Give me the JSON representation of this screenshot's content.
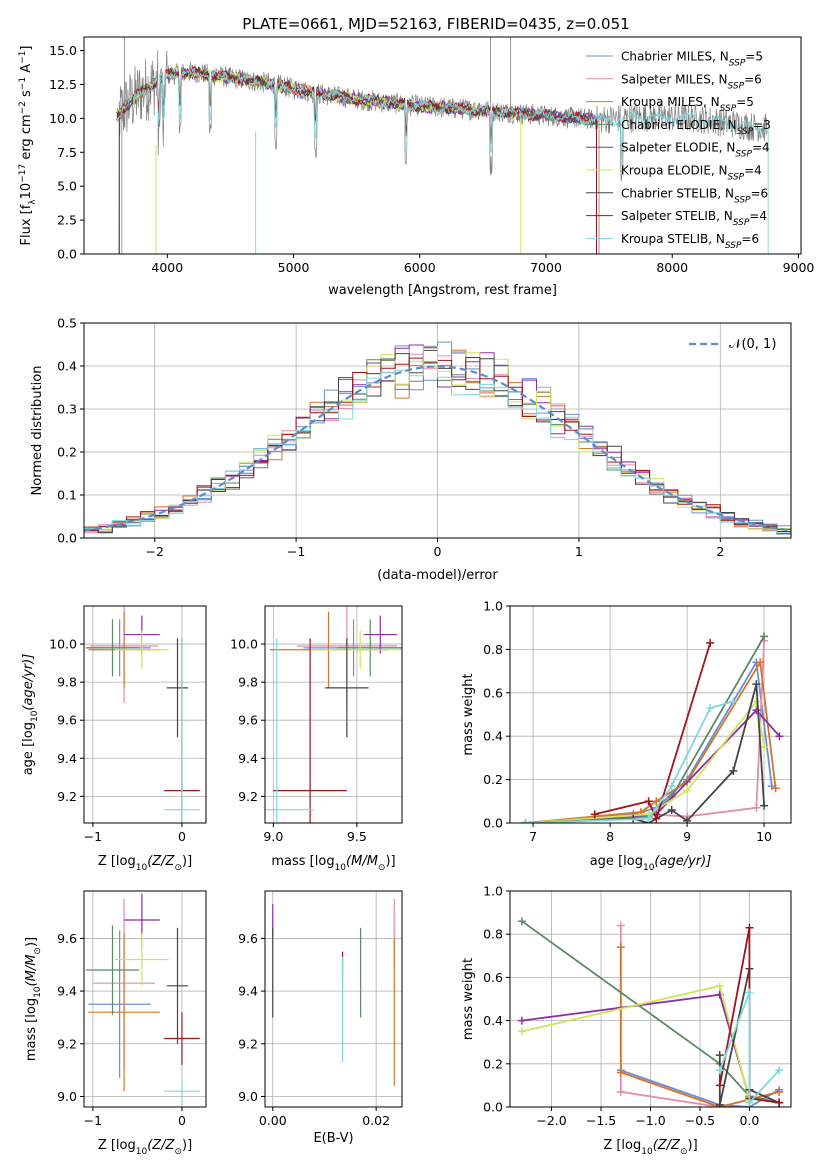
{
  "title": "PLATE=0661, MJD=52163, FIBERID=0435, z=0.051",
  "colors": {
    "cm": "#6a8fd8",
    "sm": "#e68aae",
    "km": "#d5742a",
    "ce": "#5b8a63",
    "se": "#8f2ca6",
    "ke": "#cfe45a",
    "cs": "#444444",
    "ss": "#a0141a",
    "ks": "#7fd8dc",
    "normal": "#5c8cd0",
    "data": "#808080"
  },
  "chart_data": [
    {
      "id": "spectrum",
      "type": "line",
      "xlabel": "wavelength [Angstrom, rest frame]",
      "ylabel_main": "Flux [f",
      "ylabel_sub": "λ",
      "ylabel_rest": "10",
      "ylabel_exp": "−17",
      "ylabel_unit": " erg cm",
      "ylabel_unit_exp": "−2",
      "ylabel_s": " s",
      "ylabel_s_exp": "−1",
      "ylabel_a": " A",
      "ylabel_a_exp": "−1",
      "ylabel_end": "]",
      "xlim": [
        3340,
        9020
      ],
      "ylim": [
        0,
        16
      ],
      "xticks": [
        4000,
        5000,
        6000,
        7000,
        8000,
        9000
      ],
      "yticks": [
        0.0,
        2.5,
        5.0,
        7.5,
        10.0,
        12.5,
        15.0
      ],
      "legend_position": "upper right",
      "legend": [
        {
          "key": "cm",
          "name": "Chabrier MILES",
          "n": "5"
        },
        {
          "key": "sm",
          "name": "Salpeter MILES",
          "n": "6"
        },
        {
          "key": "km",
          "name": "Kroupa MILES",
          "n": "5"
        },
        {
          "key": "ce",
          "name": "Chabrier ELODIE",
          "n": "3"
        },
        {
          "key": "se",
          "name": "Salpeter ELODIE",
          "n": "4"
        },
        {
          "key": "ke",
          "name": "Kroupa ELODIE",
          "n": "4"
        },
        {
          "key": "cs",
          "name": "Chabrier STELIB",
          "n": "6"
        },
        {
          "key": "ss",
          "name": "Salpeter STELIB",
          "n": "4"
        },
        {
          "key": "ks",
          "name": "Kroupa STELIB",
          "n": "6"
        }
      ],
      "legend_label_prefix": "N",
      "legend_label_sub": "SSP",
      "continuum": [
        [
          3600,
          10.2
        ],
        [
          3800,
          12.0
        ],
        [
          4000,
          13.2
        ],
        [
          4200,
          13.4
        ],
        [
          4500,
          13.0
        ],
        [
          4800,
          12.6
        ],
        [
          5200,
          11.8
        ],
        [
          5600,
          11.3
        ],
        [
          6000,
          10.9
        ],
        [
          6500,
          10.6
        ],
        [
          7000,
          10.2
        ],
        [
          7400,
          9.9
        ],
        [
          7800,
          10.1
        ],
        [
          8200,
          10.0
        ],
        [
          8700,
          9.3
        ]
      ],
      "data_extent": [
        3600,
        8750
      ],
      "ssp_extents": {
        "cm": [
          3600,
          7400
        ],
        "sm": [
          3600,
          7400
        ],
        "km": [
          3600,
          7400
        ],
        "ce": [
          3600,
          7400
        ],
        "se": [
          3600,
          7400
        ],
        "ke": [
          3600,
          6800
        ],
        "cs": [
          3600,
          7400
        ],
        "ss": [
          3600,
          7400
        ],
        "ks": [
          3600,
          8760
        ]
      }
    },
    {
      "id": "residuals",
      "type": "histogram",
      "xlabel": "(data-model)/error",
      "ylabel": "Normed distribution",
      "xlim": [
        -2.5,
        2.5
      ],
      "ylim": [
        0,
        0.5
      ],
      "xticks": [
        -2,
        -1,
        0,
        1,
        2
      ],
      "yticks": [
        0.0,
        0.1,
        0.2,
        0.3,
        0.4,
        0.5
      ],
      "grid": true,
      "legend_label": "𝒩(0, 1)",
      "legend_position": "upper right",
      "bin_width": 0.1
    },
    {
      "id": "age_vs_Z",
      "type": "errorbar",
      "xlabel": "Z [log10(Z/Z⊙)]",
      "xlabel_pre": "Z [log",
      "xlabel_sub": "10",
      "xlabel_mid": "(Z/Z",
      "xlabel_sun": "⊙",
      "xlabel_end": ")]",
      "ylabel_pre": "age  [log",
      "ylabel_sub": "10",
      "ylabel_end": "(age/yr)]",
      "xlim": [
        -1.1,
        0.27
      ],
      "ylim": [
        9.06,
        10.2
      ],
      "xticks": [
        -1,
        0
      ],
      "yticks": [
        9.2,
        9.4,
        9.6,
        9.8,
        10.0
      ],
      "grid": true,
      "points": [
        {
          "key": "cm",
          "x": -0.7,
          "y": 9.98,
          "xerr": 0.35,
          "yerr": 0.15
        },
        {
          "key": "sm",
          "x": -0.65,
          "y": 9.99,
          "xerr": 0.38,
          "yerr": 0.3
        },
        {
          "key": "km",
          "x": -0.65,
          "y": 9.97,
          "xerr": 0.4,
          "yerr": 0.2
        },
        {
          "key": "ce",
          "x": -0.78,
          "y": 9.98,
          "xerr": 0.3,
          "yerr": 0.15
        },
        {
          "key": "se",
          "x": -0.45,
          "y": 10.05,
          "xerr": 0.2,
          "yerr": 0.1
        },
        {
          "key": "ke",
          "x": -0.45,
          "y": 9.97,
          "xerr": 0.3,
          "yerr": 0.1
        },
        {
          "key": "cs",
          "x": -0.05,
          "y": 9.77,
          "xerr": 0.12,
          "yerr": 0.26
        },
        {
          "key": "ss",
          "x": 0.0,
          "y": 9.23,
          "xerr": 0.2,
          "yerr": 0.8
        },
        {
          "key": "ks",
          "x": 0.0,
          "y": 9.13,
          "xerr": 0.2,
          "yerr": 0.9
        }
      ]
    },
    {
      "id": "age_vs_mass",
      "type": "errorbar",
      "xlabel_pre": "mass [log",
      "xlabel_sub": "10",
      "xlabel_mid": "(M/M",
      "xlabel_sun": "⊙",
      "xlabel_end": ")]",
      "xlim": [
        8.95,
        9.77
      ],
      "ylim": [
        9.06,
        10.2
      ],
      "xticks": [
        9.0,
        9.5
      ],
      "yticks": [
        9.2,
        9.4,
        9.6,
        9.8,
        10.0
      ],
      "grid": true,
      "points": [
        {
          "key": "cm",
          "x": 9.48,
          "y": 9.98,
          "xerr": 0.3,
          "yerr": 0.15
        },
        {
          "key": "sm",
          "x": 9.44,
          "y": 9.99,
          "xerr": 0.3,
          "yerr": 0.3
        },
        {
          "key": "km",
          "x": 9.33,
          "y": 9.97,
          "xerr": 0.35,
          "yerr": 0.2
        },
        {
          "key": "ce",
          "x": 9.58,
          "y": 9.98,
          "xerr": 0.2,
          "yerr": 0.15
        },
        {
          "key": "se",
          "x": 9.64,
          "y": 10.05,
          "xerr": 0.1,
          "yerr": 0.1
        },
        {
          "key": "ke",
          "x": 9.52,
          "y": 9.97,
          "xerr": 0.3,
          "yerr": 0.1
        },
        {
          "key": "cs",
          "x": 9.44,
          "y": 9.77,
          "xerr": 0.13,
          "yerr": 0.26
        },
        {
          "key": "ss",
          "x": 9.22,
          "y": 9.23,
          "xerr": 0.22,
          "yerr": 0.8
        },
        {
          "key": "ks",
          "x": 9.02,
          "y": 9.13,
          "xerr": 0.22,
          "yerr": 0.9
        }
      ]
    },
    {
      "id": "weight_vs_age",
      "type": "line",
      "xlabel_pre": "age  [log",
      "xlabel_sub": "10",
      "xlabel_end": "(age/yr)]",
      "ylabel": "mass weight",
      "xlim": [
        6.7,
        10.35
      ],
      "ylim": [
        0,
        1
      ],
      "xticks": [
        7,
        8,
        9,
        10
      ],
      "yticks": [
        0.0,
        0.2,
        0.4,
        0.6,
        0.8,
        1.0
      ],
      "grid": true,
      "series": [
        {
          "key": "cm",
          "points": [
            [
              6.9,
              0.0
            ],
            [
              8.3,
              0.04
            ],
            [
              8.6,
              0.07
            ],
            [
              9.0,
              0.2
            ],
            [
              9.9,
              0.74
            ],
            [
              10.1,
              0.17
            ]
          ]
        },
        {
          "key": "sm",
          "points": [
            [
              6.9,
              0.0
            ],
            [
              8.5,
              0.04
            ],
            [
              9.0,
              0.03
            ],
            [
              9.9,
              0.07
            ],
            [
              10.0,
              0.84
            ]
          ]
        },
        {
          "key": "km",
          "points": [
            [
              6.9,
              0.0
            ],
            [
              8.4,
              0.05
            ],
            [
              8.6,
              0.1
            ],
            [
              9.0,
              0.19
            ],
            [
              9.95,
              0.74
            ],
            [
              10.15,
              0.16
            ]
          ]
        },
        {
          "key": "ce",
          "points": [
            [
              6.9,
              0.0
            ],
            [
              8.5,
              0.03
            ],
            [
              8.8,
              0.12
            ],
            [
              10.0,
              0.86
            ]
          ]
        },
        {
          "key": "se",
          "points": [
            [
              6.9,
              0.0
            ],
            [
              8.6,
              0.04
            ],
            [
              9.9,
              0.52
            ],
            [
              10.2,
              0.4
            ]
          ]
        },
        {
          "key": "ke",
          "points": [
            [
              6.9,
              0.0
            ],
            [
              8.5,
              0.04
            ],
            [
              9.0,
              0.15
            ],
            [
              9.9,
              0.56
            ],
            [
              10.0,
              0.35
            ]
          ]
        },
        {
          "key": "cs",
          "points": [
            [
              6.9,
              0.0
            ],
            [
              8.3,
              0.02
            ],
            [
              8.5,
              0.0
            ],
            [
              8.8,
              0.06
            ],
            [
              9.0,
              0.01
            ],
            [
              9.6,
              0.24
            ],
            [
              9.9,
              0.64
            ],
            [
              10.0,
              0.08
            ]
          ]
        },
        {
          "key": "ss",
          "points": [
            [
              7.8,
              0.04
            ],
            [
              8.5,
              0.1
            ],
            [
              8.6,
              0.02
            ],
            [
              9.3,
              0.83
            ]
          ]
        },
        {
          "key": "ks",
          "points": [
            [
              6.9,
              0.0
            ],
            [
              8.5,
              0.02
            ],
            [
              8.8,
              0.17
            ],
            [
              9.3,
              0.53
            ],
            [
              9.6,
              0.56
            ]
          ]
        }
      ]
    },
    {
      "id": "mass_vs_Z",
      "type": "errorbar",
      "xlabel_pre": "Z [log",
      "xlabel_sub": "10",
      "xlabel_mid": "(Z/Z",
      "xlabel_sun": "⊙",
      "xlabel_end": ")]",
      "ylabel_pre": "mass [log",
      "ylabel_sub": "10",
      "ylabel_mid": "(M/M",
      "ylabel_sun": "⊙",
      "ylabel_end": ")]",
      "xlim": [
        -1.1,
        0.27
      ],
      "ylim": [
        8.96,
        9.78
      ],
      "xticks": [
        -1,
        0
      ],
      "yticks": [
        9.0,
        9.2,
        9.4,
        9.6
      ],
      "grid": true,
      "points": [
        {
          "key": "cm",
          "x": -0.7,
          "y": 9.35,
          "xerr": 0.35,
          "yerr": 0.28
        },
        {
          "key": "sm",
          "x": -0.65,
          "y": 9.43,
          "xerr": 0.35,
          "yerr": 0.32
        },
        {
          "key": "km",
          "x": -0.65,
          "y": 9.32,
          "xerr": 0.4,
          "yerr": 0.3
        },
        {
          "key": "ce",
          "x": -0.78,
          "y": 9.48,
          "xerr": 0.3,
          "yerr": 0.17
        },
        {
          "key": "se",
          "x": -0.45,
          "y": 9.67,
          "xerr": 0.2,
          "yerr": 0.1
        },
        {
          "key": "ke",
          "x": -0.45,
          "y": 9.52,
          "xerr": 0.3,
          "yerr": 0.1
        },
        {
          "key": "cs",
          "x": -0.05,
          "y": 9.42,
          "xerr": 0.12,
          "yerr": 0.22
        },
        {
          "key": "ss",
          "x": 0.0,
          "y": 9.22,
          "xerr": 0.2,
          "yerr": 0.1
        },
        {
          "key": "ks",
          "x": 0.0,
          "y": 9.02,
          "xerr": 0.2,
          "yerr": 0.05
        }
      ]
    },
    {
      "id": "mass_vs_ebv",
      "type": "errorbar",
      "xlabel": "E(B-V)",
      "xlim": [
        -0.0015,
        0.025
      ],
      "ylim": [
        8.96,
        9.78
      ],
      "xticks": [
        0.0,
        0.02
      ],
      "yticks": [
        9.0,
        9.2,
        9.4,
        9.6
      ],
      "grid": true,
      "points": [
        {
          "key": "se",
          "x": 0.0,
          "y": 9.67,
          "xerr": 0,
          "yerr": 0.06
        },
        {
          "key": "cs",
          "x": 0.0,
          "y": 9.47,
          "xerr": 0,
          "yerr": 0.17
        },
        {
          "key": "ss",
          "x": 0.0135,
          "y": 9.5,
          "xerr": 0,
          "yerr": 0.05
        },
        {
          "key": "ks",
          "x": 0.0135,
          "y": 9.33,
          "xerr": 0,
          "yerr": 0.2
        },
        {
          "key": "ce",
          "x": 0.017,
          "y": 9.47,
          "xerr": 0,
          "yerr": 0.17
        },
        {
          "key": "sm",
          "x": 0.0235,
          "y": 9.62,
          "xerr": 0,
          "yerr": 0.13
        },
        {
          "key": "km",
          "x": 0.0235,
          "y": 9.32,
          "xerr": 0,
          "yerr": 0.28
        }
      ]
    },
    {
      "id": "weight_vs_Z",
      "type": "line",
      "xlabel_pre": "Z [log",
      "xlabel_sub": "10",
      "xlabel_mid": "(Z/Z",
      "xlabel_sun": "⊙",
      "xlabel_end": ")]",
      "ylabel": "mass weight",
      "xlim": [
        -2.42,
        0.42
      ],
      "ylim": [
        0,
        1
      ],
      "xticks": [
        -2.0,
        -1.5,
        -1.0,
        -0.5,
        0.0
      ],
      "yticks": [
        0.0,
        0.2,
        0.4,
        0.6,
        0.8,
        1.0
      ],
      "grid": true,
      "series": [
        {
          "key": "cm",
          "points": [
            [
              -1.3,
              0.17
            ],
            [
              -0.3,
              0.01
            ],
            [
              0.0,
              0.0
            ],
            [
              0.3,
              0.08
            ]
          ]
        },
        {
          "key": "sm",
          "points": [
            [
              -1.3,
              0.84
            ],
            [
              -1.3,
              0.07
            ],
            [
              -0.3,
              0.0
            ],
            [
              0.3,
              0.07
            ]
          ]
        },
        {
          "key": "km",
          "points": [
            [
              -1.3,
              0.74
            ],
            [
              -1.3,
              0.16
            ],
            [
              -0.3,
              0.0
            ],
            [
              0.3,
              0.07
            ]
          ]
        },
        {
          "key": "ce",
          "points": [
            [
              -2.3,
              0.86
            ],
            [
              -0.3,
              0.2
            ],
            [
              0.0,
              0.05
            ],
            [
              0.3,
              0.02
            ]
          ]
        },
        {
          "key": "se",
          "points": [
            [
              -2.3,
              0.4
            ],
            [
              -0.3,
              0.52
            ],
            [
              0.0,
              0.04
            ]
          ]
        },
        {
          "key": "ke",
          "points": [
            [
              -2.3,
              0.35
            ],
            [
              -0.3,
              0.56
            ],
            [
              0.0,
              0.03
            ]
          ]
        },
        {
          "key": "cs",
          "points": [
            [
              -0.3,
              0.24
            ],
            [
              -0.3,
              0.01
            ],
            [
              0.0,
              0.64
            ],
            [
              0.0,
              0.08
            ],
            [
              0.3,
              0.02
            ]
          ]
        },
        {
          "key": "ss",
          "points": [
            [
              -0.3,
              0.1
            ],
            [
              0.0,
              0.83
            ],
            [
              0.0,
              0.04
            ],
            [
              0.3,
              0.02
            ]
          ]
        },
        {
          "key": "ks",
          "points": [
            [
              -0.3,
              0.17
            ],
            [
              0.0,
              0.53
            ],
            [
              0.0,
              0.02
            ],
            [
              0.3,
              0.17
            ]
          ]
        }
      ]
    }
  ]
}
